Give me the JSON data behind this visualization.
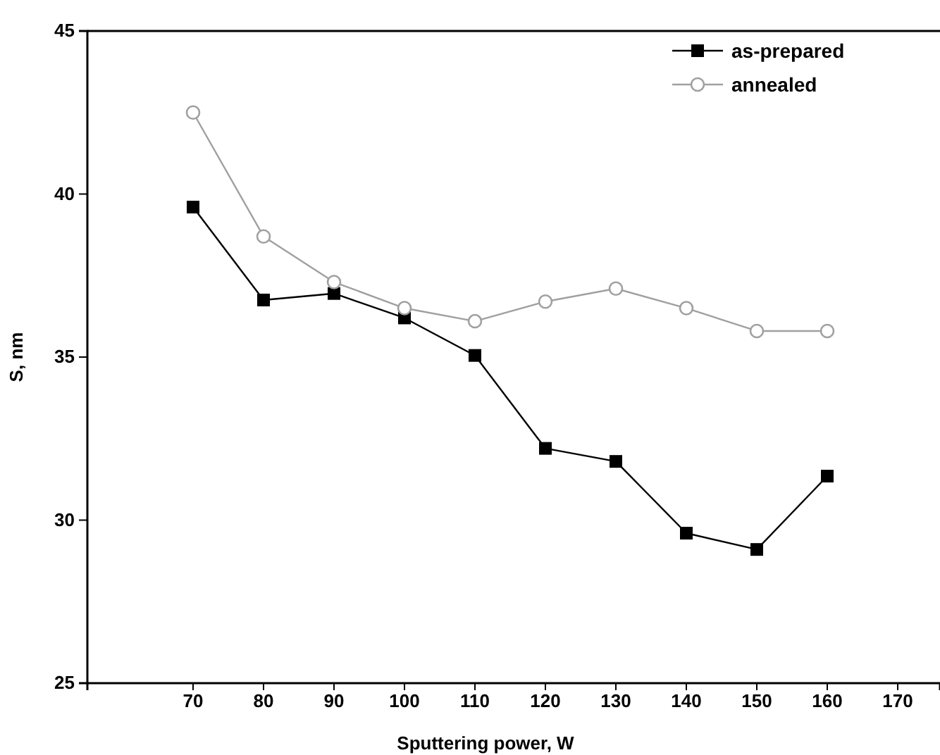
{
  "chart_data": {
    "type": "line",
    "xlabel": "Sputtering power, W",
    "ylabel": "S, nm",
    "x": [
      70,
      80,
      90,
      100,
      110,
      120,
      130,
      140,
      150,
      160
    ],
    "xlim": [
      55,
      176
    ],
    "xticks": [
      70,
      80,
      90,
      100,
      110,
      120,
      130,
      140,
      150,
      160,
      170
    ],
    "ylim": [
      25,
      45
    ],
    "yticks": [
      25,
      30,
      35,
      40,
      45
    ],
    "legend": "top right",
    "grid": false,
    "series": [
      {
        "name": "as-prepared",
        "color": "#000000",
        "marker": "square",
        "values": [
          39.6,
          36.75,
          36.95,
          36.2,
          35.05,
          32.2,
          31.8,
          29.6,
          29.1,
          31.35
        ]
      },
      {
        "name": "annealed",
        "color": "#a0a0a0",
        "marker": "circle",
        "values": [
          42.5,
          38.7,
          37.3,
          36.5,
          36.1,
          36.7,
          37.1,
          36.5,
          35.8,
          35.8
        ]
      }
    ]
  }
}
